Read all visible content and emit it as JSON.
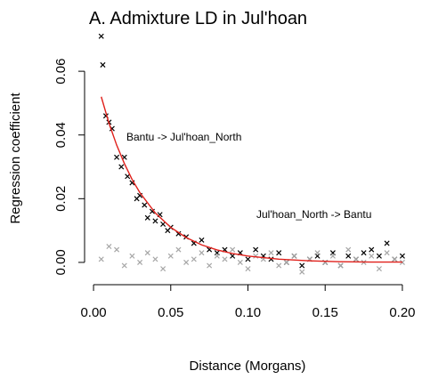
{
  "chart_data": {
    "type": "scatter",
    "title": "A. Admixture LD in Jul'hoan",
    "x_label": "Distance (Morgans)",
    "y_label": "Regression coefficient",
    "xlim": [
      -0.0058,
      0.2058
    ],
    "ylim": [
      -0.007,
      0.0726
    ],
    "xticks": [
      {
        "value": 0,
        "label": "0.00"
      },
      {
        "value": 0.05,
        "label": "0.05"
      },
      {
        "value": 0.1,
        "label": "0.10"
      },
      {
        "value": 0.15,
        "label": "0.15"
      },
      {
        "value": 0.2,
        "label": "0.20"
      }
    ],
    "yticks": [
      {
        "value": 0,
        "label": "0.00"
      },
      {
        "value": 0.02,
        "label": "0.02"
      },
      {
        "value": 0.04,
        "label": "0.04"
      },
      {
        "value": 0.06,
        "label": "0.06"
      }
    ],
    "series": [
      {
        "name": "Bantu -> Jul'hoan_North",
        "color": "#000000",
        "x": [
          0.005,
          0.006,
          0.008,
          0.01,
          0.012,
          0.015,
          0.018,
          0.02,
          0.022,
          0.025,
          0.028,
          0.03,
          0.033,
          0.035,
          0.038,
          0.04,
          0.043,
          0.045,
          0.048,
          0.05,
          0.055,
          0.06,
          0.065,
          0.07,
          0.075,
          0.08,
          0.085,
          0.09,
          0.095,
          0.1,
          0.105,
          0.11,
          0.115,
          0.12,
          0.125,
          0.13,
          0.135,
          0.14,
          0.145,
          0.15,
          0.155,
          0.16,
          0.165,
          0.17,
          0.175,
          0.18,
          0.185,
          0.19,
          0.195,
          0.2
        ],
        "values": [
          0.071,
          0.062,
          0.046,
          0.044,
          0.042,
          0.033,
          0.03,
          0.033,
          0.027,
          0.025,
          0.02,
          0.021,
          0.018,
          0.014,
          0.016,
          0.013,
          0.015,
          0.012,
          0.01,
          0.011,
          0.009,
          0.008,
          0.006,
          0.007,
          0.004,
          0.003,
          0.004,
          0.002,
          0.003,
          0.001,
          0.004,
          0.002,
          0.001,
          0.003,
          0.0,
          0.002,
          -0.001,
          0.001,
          0.002,
          0.0,
          0.003,
          -0.001,
          0.002,
          0.001,
          0.003,
          0.004,
          0.002,
          0.006,
          0.001,
          0.002
        ]
      },
      {
        "name": "Jul'hoan_North -> Bantu",
        "color": "#a6a6a6",
        "x": [
          0.005,
          0.01,
          0.015,
          0.02,
          0.025,
          0.03,
          0.035,
          0.04,
          0.045,
          0.05,
          0.055,
          0.06,
          0.065,
          0.07,
          0.075,
          0.08,
          0.085,
          0.09,
          0.095,
          0.1,
          0.105,
          0.11,
          0.115,
          0.12,
          0.125,
          0.13,
          0.135,
          0.14,
          0.145,
          0.15,
          0.155,
          0.16,
          0.165,
          0.17,
          0.175,
          0.18,
          0.185,
          0.19,
          0.195,
          0.2
        ],
        "values": [
          0.001,
          0.005,
          0.004,
          -0.001,
          0.002,
          0.0,
          0.003,
          0.001,
          -0.002,
          0.002,
          0.004,
          0.0,
          0.001,
          0.003,
          -0.001,
          0.002,
          0.001,
          0.004,
          0.0,
          -0.002,
          0.002,
          0.001,
          0.003,
          -0.001,
          0.0,
          0.002,
          -0.003,
          0.001,
          0.003,
          0.0,
          0.002,
          -0.001,
          0.004,
          0.001,
          0.0,
          0.002,
          -0.002,
          0.003,
          0.001,
          0.0
        ]
      }
    ],
    "fit": {
      "color": "#e0201b",
      "x": [
        0.005,
        0.01,
        0.015,
        0.02,
        0.025,
        0.03,
        0.04,
        0.05,
        0.06,
        0.07,
        0.08,
        0.09,
        0.1,
        0.12,
        0.14,
        0.16,
        0.18,
        0.2
      ],
      "values": [
        0.052,
        0.0437,
        0.0368,
        0.031,
        0.026,
        0.0219,
        0.0155,
        0.011,
        0.0078,
        0.0055,
        0.0039,
        0.0028,
        0.002,
        0.001,
        0.0005,
        0.0002,
        0.0001,
        0.0001
      ]
    }
  }
}
